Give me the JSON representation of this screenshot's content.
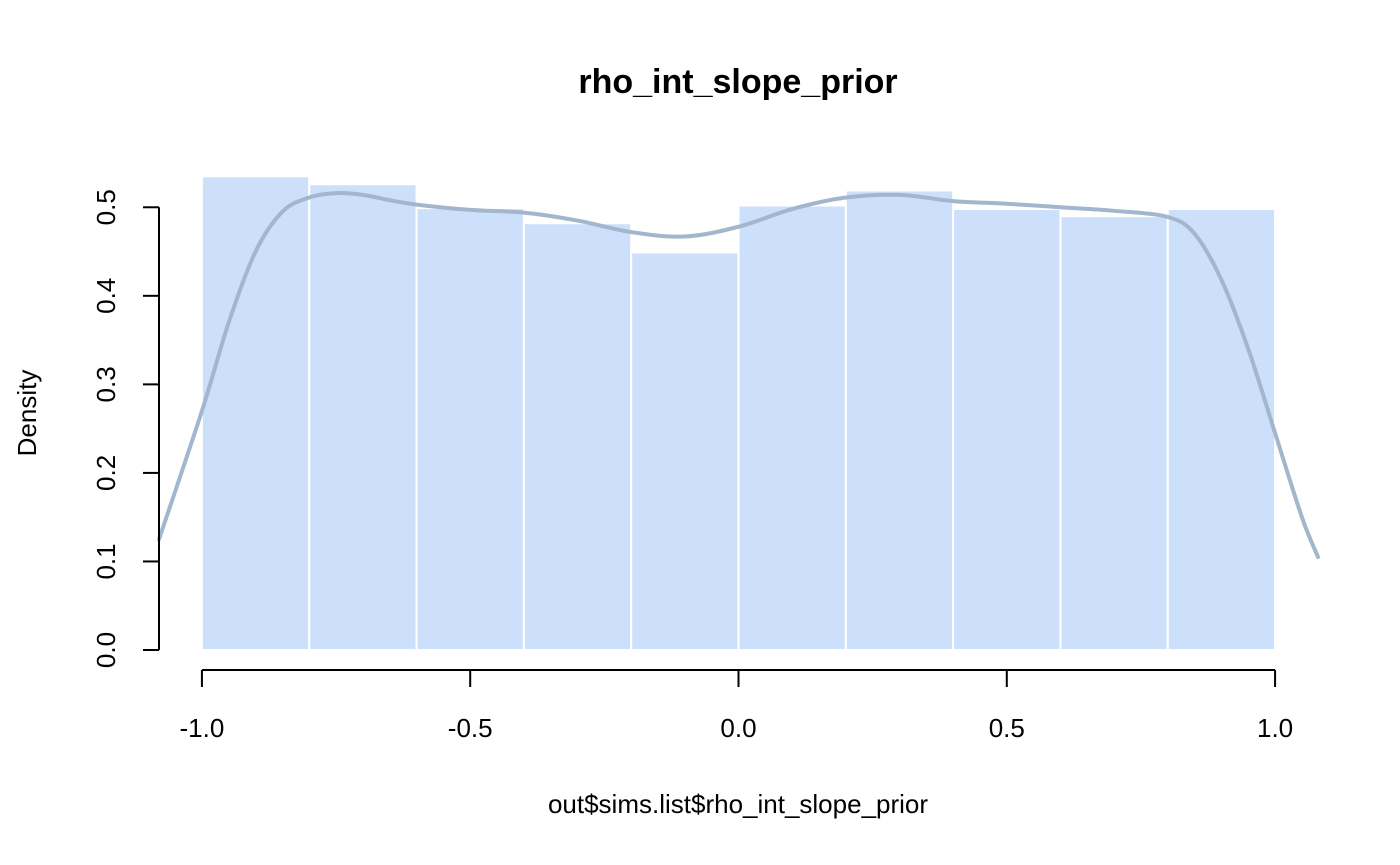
{
  "chart_data": {
    "type": "bar",
    "title": "rho_int_slope_prior",
    "xlabel": "out$sims.list$rho_int_slope_prior",
    "ylabel": "Density",
    "bins": [
      {
        "from": -1.0,
        "to": -0.8,
        "density": 0.535
      },
      {
        "from": -0.8,
        "to": -0.6,
        "density": 0.526
      },
      {
        "from": -0.6,
        "to": -0.4,
        "density": 0.499
      },
      {
        "from": -0.4,
        "to": -0.2,
        "density": 0.482
      },
      {
        "from": -0.2,
        "to": 0.0,
        "density": 0.449
      },
      {
        "from": 0.0,
        "to": 0.2,
        "density": 0.502
      },
      {
        "from": 0.2,
        "to": 0.4,
        "density": 0.519
      },
      {
        "from": 0.4,
        "to": 0.6,
        "density": 0.498
      },
      {
        "from": 0.6,
        "to": 0.8,
        "density": 0.49
      },
      {
        "from": 0.8,
        "to": 1.0,
        "density": 0.498
      }
    ],
    "density_curve": {
      "x": [
        -1.08,
        -1.0,
        -0.95,
        -0.9,
        -0.85,
        -0.8,
        -0.75,
        -0.7,
        -0.65,
        -0.6,
        -0.5,
        -0.4,
        -0.3,
        -0.2,
        -0.1,
        0.0,
        0.1,
        0.2,
        0.3,
        0.4,
        0.5,
        0.6,
        0.7,
        0.8,
        0.85,
        0.9,
        0.95,
        1.0,
        1.05,
        1.08
      ],
      "y": [
        0.125,
        0.27,
        0.37,
        0.45,
        0.495,
        0.511,
        0.516,
        0.514,
        0.508,
        0.503,
        0.497,
        0.494,
        0.485,
        0.472,
        0.467,
        0.478,
        0.498,
        0.511,
        0.514,
        0.507,
        0.504,
        0.5,
        0.496,
        0.489,
        0.47,
        0.418,
        0.34,
        0.245,
        0.15,
        0.105
      ]
    },
    "xlim": [
      -1.08,
      1.08
    ],
    "ylim": [
      0.0,
      0.55
    ],
    "xticks": [
      -1.0,
      -0.5,
      0.0,
      0.5,
      1.0
    ],
    "xtick_labels": [
      "-1.0",
      "-0.5",
      "0.0",
      "0.5",
      "1.0"
    ],
    "yticks": [
      0.0,
      0.1,
      0.2,
      0.3,
      0.4,
      0.5
    ],
    "ytick_labels": [
      "0.0",
      "0.1",
      "0.2",
      "0.3",
      "0.4",
      "0.5"
    ],
    "bar_color": "#cce0fc",
    "bar_border_color": "#ffffff",
    "curve_color": "#a2b6ce",
    "grid": false,
    "legend": "none"
  }
}
